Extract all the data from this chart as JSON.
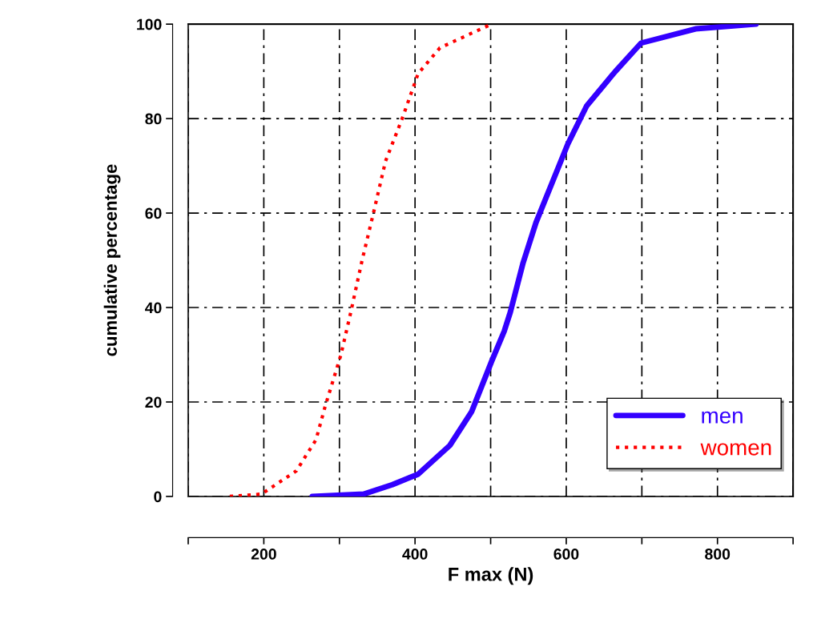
{
  "chart_data": {
    "type": "line",
    "xlabel": "F max (N)",
    "ylabel": "cumulative percentage",
    "series": [
      {
        "name": "men",
        "color": "#3300ff",
        "line_style": "solid",
        "x": [
          264,
          332,
          370,
          404,
          446,
          475,
          501,
          518,
          526,
          543,
          560,
          602,
          627,
          665,
          699,
          771,
          851
        ],
        "values": [
          0,
          0.5,
          2.5,
          4.7,
          10.8,
          18,
          28.5,
          35,
          39,
          49.5,
          58,
          74.6,
          82.7,
          90,
          96,
          99,
          100
        ]
      },
      {
        "name": "women",
        "color": "#ff0000",
        "line_style": "dotted",
        "x": [
          155,
          197,
          243,
          269,
          281,
          302,
          315,
          330,
          345,
          361,
          383,
          404,
          433,
          497
        ],
        "values": [
          0,
          0.5,
          5.4,
          12,
          19,
          30,
          39,
          50,
          60,
          71,
          80,
          89.5,
          95,
          99.7
        ]
      }
    ],
    "xlim": [
      100,
      900
    ],
    "xticks": [
      {
        "value": 100,
        "label": null
      },
      200,
      {
        "value": 300,
        "label": null
      },
      400,
      {
        "value": 500,
        "label": null
      },
      600,
      {
        "value": 700,
        "label": null
      },
      800,
      {
        "value": 900,
        "label": null
      }
    ],
    "ylim": [
      0,
      100
    ],
    "yticks": [
      0,
      20,
      40,
      60,
      80,
      100
    ],
    "grid": true,
    "legend": "bottom right"
  }
}
